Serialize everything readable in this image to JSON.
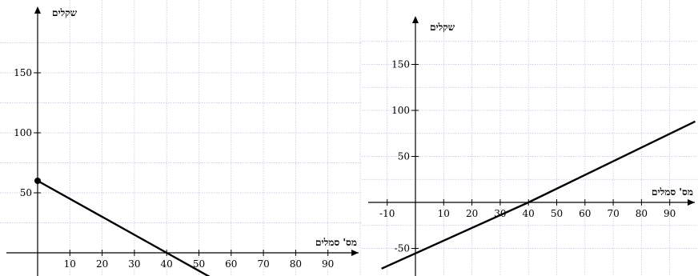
{
  "chart_data": [
    {
      "type": "line",
      "title": "",
      "xlabel": "מס' סמלים",
      "ylabel": "שקלים",
      "xlim": [
        0,
        100
      ],
      "ylim": [
        -10,
        190
      ],
      "xticks": [
        10,
        20,
        30,
        40,
        50,
        60,
        70,
        80,
        90
      ],
      "yticks": [
        50,
        100,
        150
      ],
      "grid": true,
      "series": [
        {
          "x": [
            0,
            40,
            54
          ],
          "y": [
            60,
            0,
            -21
          ],
          "marker_at_start": true
        }
      ]
    },
    {
      "type": "line",
      "title": "",
      "xlabel": "מס' סמלים",
      "ylabel": "שקלים",
      "xlim": [
        -13,
        99
      ],
      "ylim": [
        -68,
        198
      ],
      "xticks": [
        -10,
        10,
        20,
        30,
        40,
        50,
        60,
        70,
        80,
        90
      ],
      "yticks": [
        -50,
        50,
        100,
        150
      ],
      "grid": true,
      "series": [
        {
          "x": [
            -12,
            40,
            99
          ],
          "y": [
            -72,
            0,
            88
          ],
          "marker_at_start": false
        }
      ]
    }
  ]
}
